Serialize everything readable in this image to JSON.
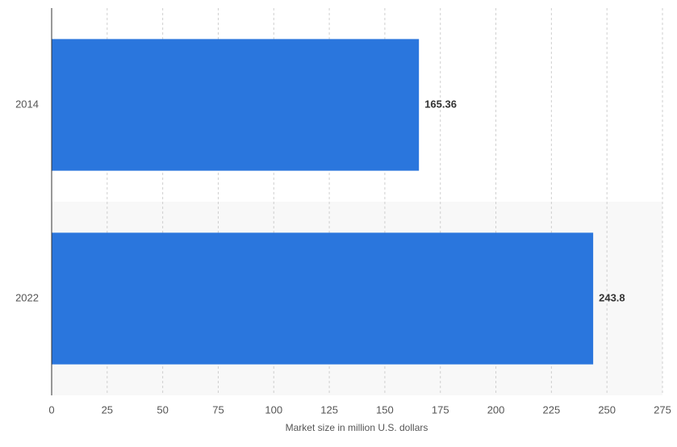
{
  "chart_data": {
    "type": "hbar",
    "x_label": "Market size in million U.S. dollars",
    "categories": [
      "2014",
      "2022"
    ],
    "values": [
      165.36,
      243.8
    ],
    "color": "#2a76dd",
    "xlim": [
      0,
      275
    ],
    "xticks": [
      0,
      25,
      50,
      75,
      100,
      125,
      150,
      175,
      200,
      225,
      250,
      275
    ],
    "grid": true
  }
}
